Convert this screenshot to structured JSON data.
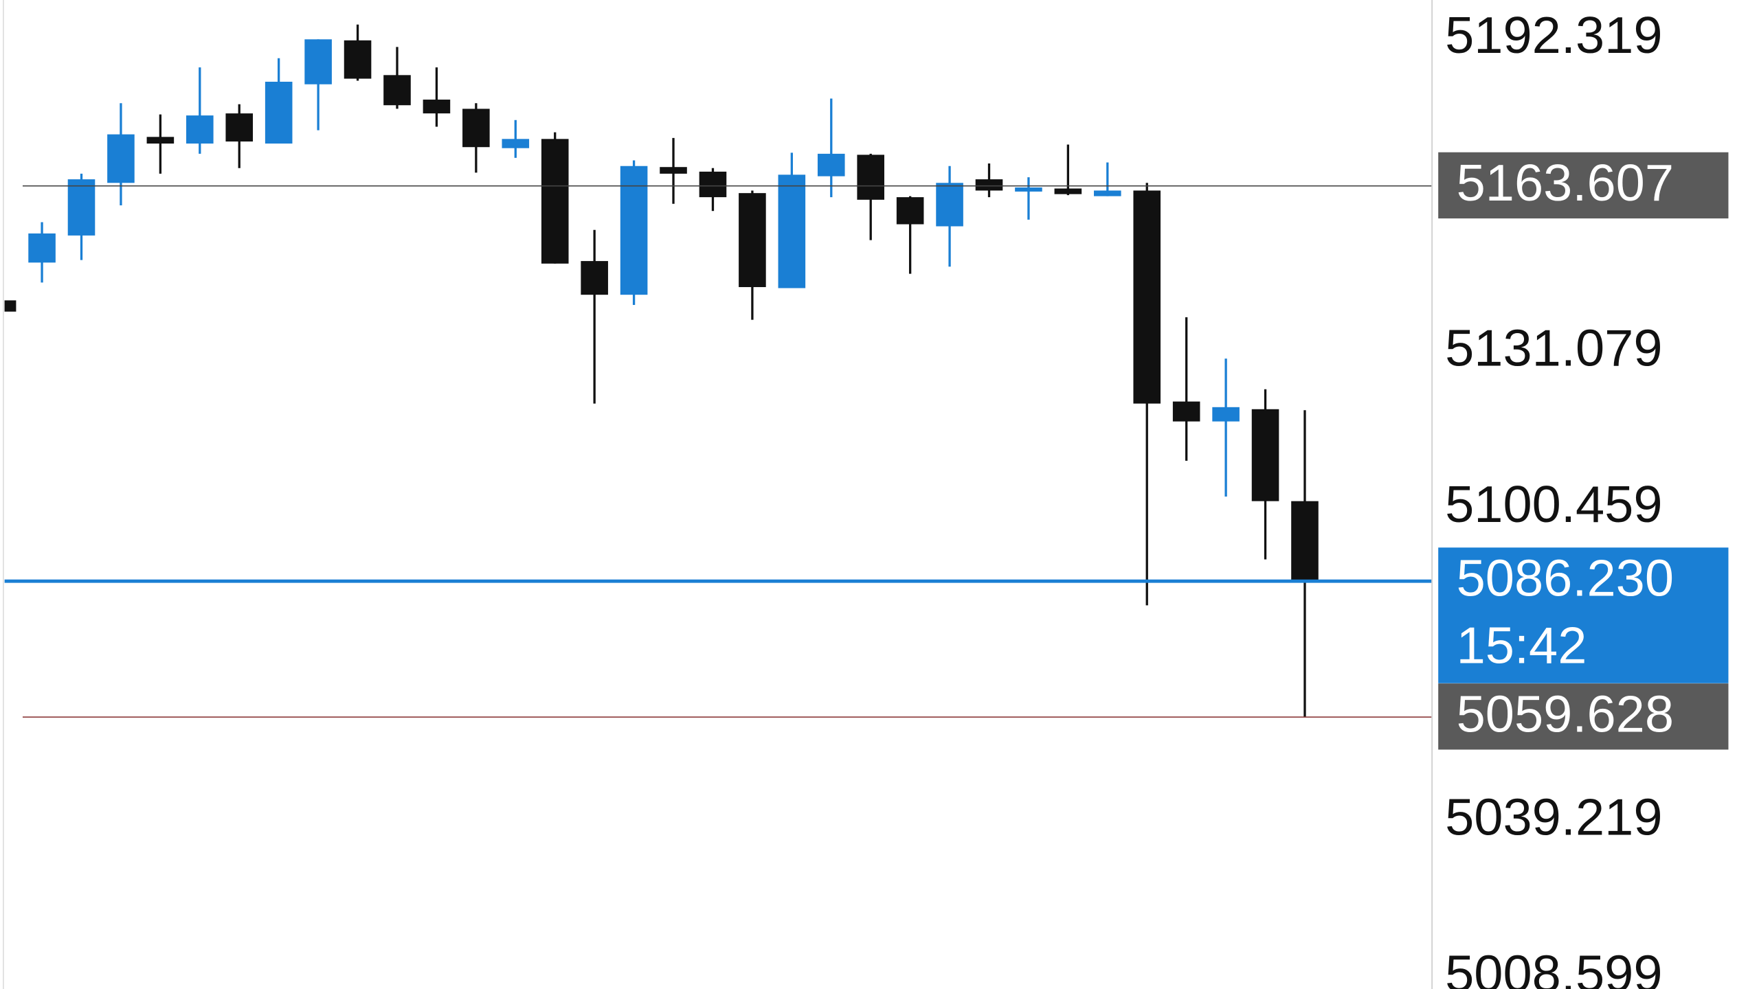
{
  "chart_data": {
    "type": "candlestick",
    "ylim": [
      5006.4,
      5200.0
    ],
    "yticks": [
      5192.319,
      5131.079,
      5100.459,
      5039.219,
      5008.599
    ],
    "up_color": "#1a7fd4",
    "down_color": "#111111",
    "open": [
      5141.2,
      5148.6,
      5153.9,
      5164.2,
      5173.2,
      5171.9,
      5177.8,
      5171.9,
      5183.5,
      5192.1,
      5185.3,
      5180.5,
      5178.7,
      5171.0,
      5172.8,
      5148.9,
      5142.3,
      5167.3,
      5166.4,
      5162.2,
      5143.6,
      5165.5,
      5169.7,
      5161.4,
      5155.7,
      5164.9,
      5162.5,
      5163.1,
      5161.6,
      5162.7,
      5121.4,
      5117.5,
      5119.9,
      5101.9
    ],
    "high": [
      5141.2,
      5156.5,
      5166.0,
      5179.8,
      5177.6,
      5186.8,
      5179.6,
      5188.6,
      5192.3,
      5195.2,
      5190.8,
      5186.8,
      5179.8,
      5176.5,
      5174.1,
      5155.0,
      5168.6,
      5173.0,
      5167.1,
      5162.7,
      5170.1,
      5180.7,
      5169.9,
      5161.6,
      5167.5,
      5168.0,
      5165.3,
      5171.7,
      5168.2,
      5164.2,
      5137.9,
      5129.8,
      5123.8,
      5119.7
    ],
    "low": [
      5139.0,
      5144.7,
      5149.1,
      5159.8,
      5166.0,
      5169.9,
      5167.1,
      5171.9,
      5174.5,
      5184.2,
      5178.7,
      5175.2,
      5166.2,
      5169.1,
      5148.4,
      5121.0,
      5140.3,
      5160.1,
      5158.7,
      5137.4,
      5143.6,
      5161.4,
      5153.0,
      5146.4,
      5147.8,
      5161.4,
      5157.0,
      5161.8,
      5161.6,
      5081.5,
      5109.8,
      5102.8,
      5090.5,
      5059.628
    ],
    "close": [
      5139.0,
      5154.3,
      5164.9,
      5173.7,
      5171.9,
      5177.4,
      5172.3,
      5184.0,
      5192.3,
      5184.6,
      5179.4,
      5177.8,
      5171.2,
      5172.8,
      5148.4,
      5142.3,
      5167.5,
      5166.0,
      5161.4,
      5143.8,
      5165.8,
      5169.9,
      5160.9,
      5156.1,
      5164.2,
      5162.7,
      5163.3,
      5162.0,
      5162.7,
      5121.0,
      5117.5,
      5120.3,
      5101.9,
      5086.23
    ],
    "price_lines": [
      {
        "value": 5163.607,
        "color": "#444444",
        "label_color": "#5a5a5a"
      },
      {
        "value": {
          "value": 5086.23,
          "label": "5086.230"
        },
        "timer": "15:42",
        "color": "#1a7fd4",
        "label_color": "#1a7fd4"
      },
      {
        "value": 5059.628,
        "color": "#8b3a3a",
        "label_color": "#5a5a5a"
      }
    ]
  }
}
